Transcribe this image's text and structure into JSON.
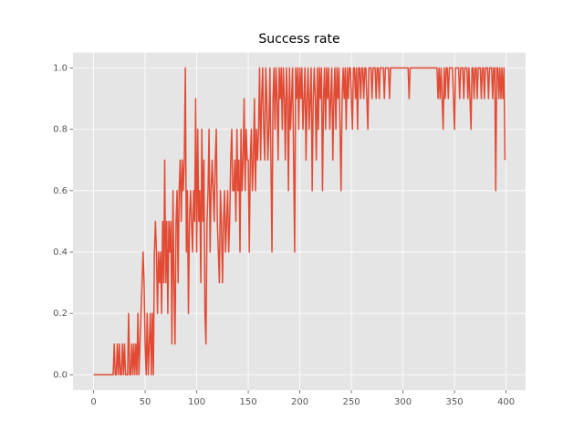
{
  "chart_data": {
    "type": "line",
    "title": "Success rate",
    "x": [
      0,
      1,
      2,
      3,
      4,
      5,
      6,
      7,
      8,
      9,
      10,
      11,
      12,
      13,
      14,
      15,
      16,
      17,
      18,
      19,
      20,
      21,
      22,
      23,
      24,
      25,
      26,
      27,
      28,
      29,
      30,
      31,
      32,
      33,
      34,
      35,
      36,
      37,
      38,
      39,
      40,
      41,
      42,
      43,
      44,
      45,
      46,
      47,
      48,
      49,
      50,
      51,
      52,
      53,
      54,
      55,
      56,
      57,
      58,
      59,
      60,
      61,
      62,
      63,
      64,
      65,
      66,
      67,
      68,
      69,
      70,
      71,
      72,
      73,
      74,
      75,
      76,
      77,
      78,
      79,
      80,
      81,
      82,
      83,
      84,
      85,
      86,
      87,
      88,
      89,
      90,
      91,
      92,
      93,
      94,
      95,
      96,
      97,
      98,
      99,
      100,
      101,
      102,
      103,
      104,
      105,
      106,
      107,
      108,
      109,
      110,
      111,
      112,
      113,
      114,
      115,
      116,
      117,
      118,
      119,
      120,
      121,
      122,
      123,
      124,
      125,
      126,
      127,
      128,
      129,
      130,
      131,
      132,
      133,
      134,
      135,
      136,
      137,
      138,
      139,
      140,
      141,
      142,
      143,
      144,
      145,
      146,
      147,
      148,
      149,
      150,
      151,
      152,
      153,
      154,
      155,
      156,
      157,
      158,
      159,
      160,
      161,
      162,
      163,
      164,
      165,
      166,
      167,
      168,
      169,
      170,
      171,
      172,
      173,
      174,
      175,
      176,
      177,
      178,
      179,
      180,
      181,
      182,
      183,
      184,
      185,
      186,
      187,
      188,
      189,
      190,
      191,
      192,
      193,
      194,
      195,
      196,
      197,
      198,
      199,
      200,
      201,
      202,
      203,
      204,
      205,
      206,
      207,
      208,
      209,
      210,
      211,
      212,
      213,
      214,
      215,
      216,
      217,
      218,
      219,
      220,
      221,
      222,
      223,
      224,
      225,
      226,
      227,
      228,
      229,
      230,
      231,
      232,
      233,
      234,
      235,
      236,
      237,
      238,
      239,
      240,
      241,
      242,
      243,
      244,
      245,
      246,
      247,
      248,
      249,
      250,
      251,
      252,
      253,
      254,
      255,
      256,
      257,
      258,
      259,
      260,
      261,
      262,
      263,
      264,
      265,
      266,
      267,
      268,
      269,
      270,
      271,
      272,
      273,
      274,
      275,
      276,
      277,
      278,
      279,
      280,
      281,
      282,
      283,
      284,
      285,
      286,
      287,
      288,
      289,
      290,
      291,
      292,
      293,
      294,
      295,
      296,
      297,
      298,
      299,
      300,
      301,
      302,
      303,
      304,
      305,
      306,
      307,
      308,
      309,
      310,
      311,
      312,
      313,
      314,
      315,
      316,
      317,
      318,
      319,
      320,
      321,
      322,
      323,
      324,
      325,
      326,
      327,
      328,
      329,
      330,
      331,
      332,
      333,
      334,
      335,
      336,
      337,
      338,
      339,
      340,
      341,
      342,
      343,
      344,
      345,
      346,
      347,
      348,
      349,
      350,
      351,
      352,
      353,
      354,
      355,
      356,
      357,
      358,
      359,
      360,
      361,
      362,
      363,
      364,
      365,
      366,
      367,
      368,
      369,
      370,
      371,
      372,
      373,
      374,
      375,
      376,
      377,
      378,
      379,
      380,
      381,
      382,
      383,
      384,
      385,
      386,
      387,
      388,
      389,
      390,
      391,
      392,
      393,
      394,
      395,
      396,
      397,
      398,
      399
    ],
    "series": [
      {
        "color": "#E24A33",
        "values": [
          0,
          0,
          0,
          0,
          0,
          0,
          0,
          0,
          0,
          0,
          0,
          0,
          0,
          0,
          0,
          0,
          0,
          0,
          0,
          0,
          0.1,
          0,
          0,
          0.1,
          0,
          0.1,
          0,
          0,
          0.1,
          0,
          0.1,
          0,
          0,
          0,
          0.2,
          0,
          0,
          0.1,
          0,
          0.1,
          0,
          0.1,
          0,
          0.2,
          0,
          0.1,
          0.2,
          0.3,
          0.4,
          0.3,
          0.1,
          0,
          0.2,
          0,
          0.1,
          0.2,
          0,
          0.2,
          0,
          0.4,
          0.5,
          0.4,
          0.2,
          0.4,
          0.3,
          0.4,
          0.2,
          0.5,
          0.3,
          0.7,
          0.3,
          0.5,
          0.2,
          0.5,
          0.4,
          0.5,
          0.1,
          0.6,
          0.3,
          0.1,
          0.5,
          0.6,
          0.3,
          0.6,
          0.7,
          0.5,
          0.7,
          0.6,
          0.7,
          1.0,
          0.4,
          0.6,
          0.2,
          0.5,
          0.6,
          0.5,
          0.4,
          0.6,
          0.5,
          0.9,
          0.4,
          0.8,
          0.5,
          0.6,
          0.3,
          0.8,
          0.5,
          0.7,
          0.2,
          0.1,
          0.5,
          0.6,
          0.8,
          0.4,
          0.6,
          0.7,
          0.6,
          0.5,
          0.7,
          0.8,
          0.5,
          0.4,
          0.3,
          0.6,
          0.5,
          0.3,
          0.5,
          0.6,
          0.4,
          0.5,
          0.6,
          0.4,
          0.5,
          0.7,
          0.8,
          0.6,
          0.6,
          0.7,
          0.5,
          0.8,
          0.6,
          0.7,
          0.4,
          0.8,
          0.6,
          0.7,
          0.9,
          0.6,
          0.8,
          0.7,
          0.7,
          0.4,
          0.7,
          0.8,
          0.6,
          0.7,
          0.9,
          0.6,
          0.8,
          0.7,
          0.8,
          1.0,
          0.7,
          0.9,
          1.0,
          0.8,
          0.7,
          1.0,
          0.9,
          0.7,
          0.8,
          1.0,
          0.7,
          0.4,
          0.9,
          1.0,
          0.8,
          1.0,
          0.9,
          0.7,
          1.0,
          0.9,
          1.0,
          0.8,
          1.0,
          0.9,
          0.7,
          1.0,
          0.9,
          0.6,
          1.0,
          0.8,
          0.9,
          1.0,
          0.7,
          0.4,
          1.0,
          0.9,
          1.0,
          0.8,
          1.0,
          0.9,
          1.0,
          0.8,
          0.9,
          1.0,
          0.7,
          0.9,
          1.0,
          0.8,
          0.9,
          1.0,
          0.6,
          0.9,
          1.0,
          0.9,
          0.7,
          1.0,
          0.8,
          1.0,
          0.9,
          1.0,
          0.6,
          0.9,
          1.0,
          0.8,
          1.0,
          0.9,
          1.0,
          0.8,
          0.9,
          1.0,
          0.7,
          0.9,
          1.0,
          0.8,
          1.0,
          0.9,
          1.0,
          0.8,
          0.6,
          0.9,
          1.0,
          0.9,
          1.0,
          0.8,
          1.0,
          0.9,
          1.0,
          1.0,
          0.9,
          0.8,
          1.0,
          1.0,
          0.9,
          1.0,
          0.8,
          1.0,
          1.0,
          0.9,
          1.0,
          1.0,
          0.9,
          1.0,
          1.0,
          0.9,
          0.8,
          1.0,
          1.0,
          1.0,
          0.9,
          1.0,
          1.0,
          1.0,
          0.9,
          1.0,
          1.0,
          0.9,
          1.0,
          1.0,
          1.0,
          1.0,
          0.9,
          1.0,
          1.0,
          1.0,
          1.0,
          0.9,
          1.0,
          1.0,
          1.0,
          1.0,
          1.0,
          1.0,
          1.0,
          1.0,
          1.0,
          1.0,
          1.0,
          1.0,
          1,
          1,
          1,
          1,
          1,
          1,
          0.9,
          1,
          1,
          1,
          1,
          1,
          1,
          1,
          1,
          1,
          1,
          1,
          1,
          1,
          1,
          1,
          1,
          1,
          1,
          1,
          1,
          1,
          1,
          1,
          1,
          1,
          1,
          1,
          0.9,
          1,
          0.9,
          1,
          0.9,
          0.8,
          1,
          0.9,
          1,
          1,
          0.9,
          1,
          1,
          1,
          1,
          0.9,
          0.8,
          1,
          1,
          1,
          1,
          0.9,
          1,
          1,
          1,
          0.9,
          1,
          1,
          1,
          0.9,
          1,
          0.9,
          0.8,
          1,
          1,
          0.9,
          1,
          1,
          0.9,
          1,
          1,
          1,
          0.9,
          1,
          1,
          0.9,
          1,
          1,
          1,
          0.9,
          1,
          1,
          1,
          0.9,
          1,
          1,
          0.6,
          1,
          1,
          0.9,
          1,
          0.9,
          1,
          0.9,
          1,
          0.7
        ]
      }
    ],
    "xlim": [
      -19.95,
      418.95
    ],
    "xticks": [
      0,
      50,
      100,
      150,
      200,
      250,
      300,
      350,
      400
    ],
    "ylim": [
      -0.05,
      1.05
    ],
    "yticks": [
      {
        "value": 0,
        "label": "0.0"
      },
      0.2,
      0.4,
      0.6,
      0.8,
      {
        "value": 1,
        "label": "1.0"
      }
    ],
    "grid": true
  }
}
